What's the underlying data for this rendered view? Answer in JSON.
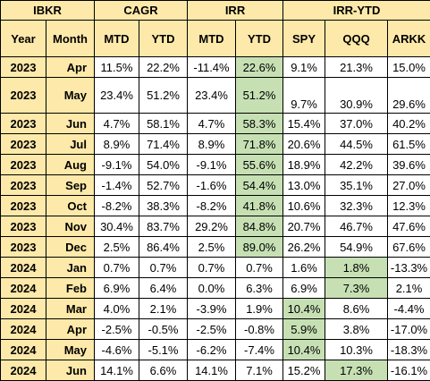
{
  "header": {
    "groups": [
      {
        "key": "ibkr",
        "label": "IBKR"
      },
      {
        "key": "cagr",
        "label": "CAGR"
      },
      {
        "key": "irr",
        "label": "IRR"
      },
      {
        "key": "irr_ytd",
        "label": "IRR-YTD"
      }
    ],
    "columns": [
      "Year",
      "Month",
      "MTD",
      "YTD",
      "MTD",
      "YTD",
      "SPY",
      "QQQ",
      "ARKK"
    ]
  },
  "highlight_color": "#c6e0b4",
  "header_color": "#fde9a9",
  "rows": [
    {
      "year": "2023",
      "month": "Apr",
      "cagr_mtd": "11.5%",
      "cagr_ytd": "22.2%",
      "irr_mtd": "-11.4%",
      "irr_ytd": "22.6%",
      "spy": "9.1%",
      "qqq": "21.3%",
      "arkk": "15.0%",
      "highlight": [
        "irr_ytd"
      ]
    },
    {
      "year": "2023",
      "month": "May",
      "cagr_mtd": "23.4%",
      "cagr_ytd": "51.2%",
      "irr_mtd": "23.4%",
      "irr_ytd": "51.2%",
      "spy": "9.7%",
      "qqq": "30.9%",
      "arkk": "29.6%",
      "highlight": [
        "irr_ytd"
      ]
    },
    {
      "year": "2023",
      "month": "Jun",
      "cagr_mtd": "4.7%",
      "cagr_ytd": "58.1%",
      "irr_mtd": "4.7%",
      "irr_ytd": "58.3%",
      "spy": "15.4%",
      "qqq": "37.0%",
      "arkk": "40.2%",
      "highlight": [
        "irr_ytd"
      ]
    },
    {
      "year": "2023",
      "month": "Jul",
      "cagr_mtd": "8.9%",
      "cagr_ytd": "71.4%",
      "irr_mtd": "8.9%",
      "irr_ytd": "71.8%",
      "spy": "20.6%",
      "qqq": "44.5%",
      "arkk": "61.5%",
      "highlight": [
        "irr_ytd"
      ]
    },
    {
      "year": "2023",
      "month": "Aug",
      "cagr_mtd": "-9.1%",
      "cagr_ytd": "54.0%",
      "irr_mtd": "-9.1%",
      "irr_ytd": "55.6%",
      "spy": "18.9%",
      "qqq": "42.2%",
      "arkk": "39.6%",
      "highlight": [
        "irr_ytd"
      ]
    },
    {
      "year": "2023",
      "month": "Sep",
      "cagr_mtd": "-1.4%",
      "cagr_ytd": "52.7%",
      "irr_mtd": "-1.6%",
      "irr_ytd": "54.4%",
      "spy": "13.0%",
      "qqq": "35.1%",
      "arkk": "27.0%",
      "highlight": [
        "irr_ytd"
      ]
    },
    {
      "year": "2023",
      "month": "Oct",
      "cagr_mtd": "-8.2%",
      "cagr_ytd": "38.3%",
      "irr_mtd": "-8.2%",
      "irr_ytd": "41.8%",
      "spy": "10.6%",
      "qqq": "32.3%",
      "arkk": "12.3%",
      "highlight": [
        "irr_ytd"
      ]
    },
    {
      "year": "2023",
      "month": "Nov",
      "cagr_mtd": "30.4%",
      "cagr_ytd": "83.7%",
      "irr_mtd": "29.2%",
      "irr_ytd": "84.8%",
      "spy": "20.7%",
      "qqq": "46.7%",
      "arkk": "47.6%",
      "highlight": [
        "irr_ytd"
      ]
    },
    {
      "year": "2023",
      "month": "Dec",
      "cagr_mtd": "2.5%",
      "cagr_ytd": "86.4%",
      "irr_mtd": "2.5%",
      "irr_ytd": "89.0%",
      "spy": "26.2%",
      "qqq": "54.9%",
      "arkk": "67.6%",
      "highlight": [
        "irr_ytd"
      ]
    },
    {
      "year": "2024",
      "month": "Jan",
      "cagr_mtd": "0.7%",
      "cagr_ytd": "0.7%",
      "irr_mtd": "0.7%",
      "irr_ytd": "0.7%",
      "spy": "1.6%",
      "qqq": "1.8%",
      "arkk": "-13.3%",
      "highlight": [
        "qqq"
      ]
    },
    {
      "year": "2024",
      "month": "Feb",
      "cagr_mtd": "6.9%",
      "cagr_ytd": "6.4%",
      "irr_mtd": "0.0%",
      "irr_ytd": "6.3%",
      "spy": "6.9%",
      "qqq": "7.3%",
      "arkk": "2.1%",
      "highlight": [
        "qqq"
      ]
    },
    {
      "year": "2024",
      "month": "Mar",
      "cagr_mtd": "4.0%",
      "cagr_ytd": "2.1%",
      "irr_mtd": "-3.9%",
      "irr_ytd": "1.9%",
      "spy": "10.4%",
      "qqq": "8.6%",
      "arkk": "-4.4%",
      "highlight": [
        "spy"
      ]
    },
    {
      "year": "2024",
      "month": "Apr",
      "cagr_mtd": "-2.5%",
      "cagr_ytd": "-0.5%",
      "irr_mtd": "-2.5%",
      "irr_ytd": "-0.8%",
      "spy": "5.9%",
      "qqq": "3.8%",
      "arkk": "-17.0%",
      "highlight": [
        "spy"
      ]
    },
    {
      "year": "2024",
      "month": "May",
      "cagr_mtd": "-4.6%",
      "cagr_ytd": "-5.1%",
      "irr_mtd": "-6.2%",
      "irr_ytd": "-7.4%",
      "spy": "10.4%",
      "qqq": "10.3%",
      "arkk": "-18.3%",
      "highlight": [
        "spy"
      ]
    },
    {
      "year": "2024",
      "month": "Jun",
      "cagr_mtd": "14.1%",
      "cagr_ytd": "6.6%",
      "irr_mtd": "14.1%",
      "irr_ytd": "7.1%",
      "spy": "15.2%",
      "qqq": "17.3%",
      "arkk": "-16.1%",
      "highlight": [
        "qqq"
      ]
    }
  ]
}
